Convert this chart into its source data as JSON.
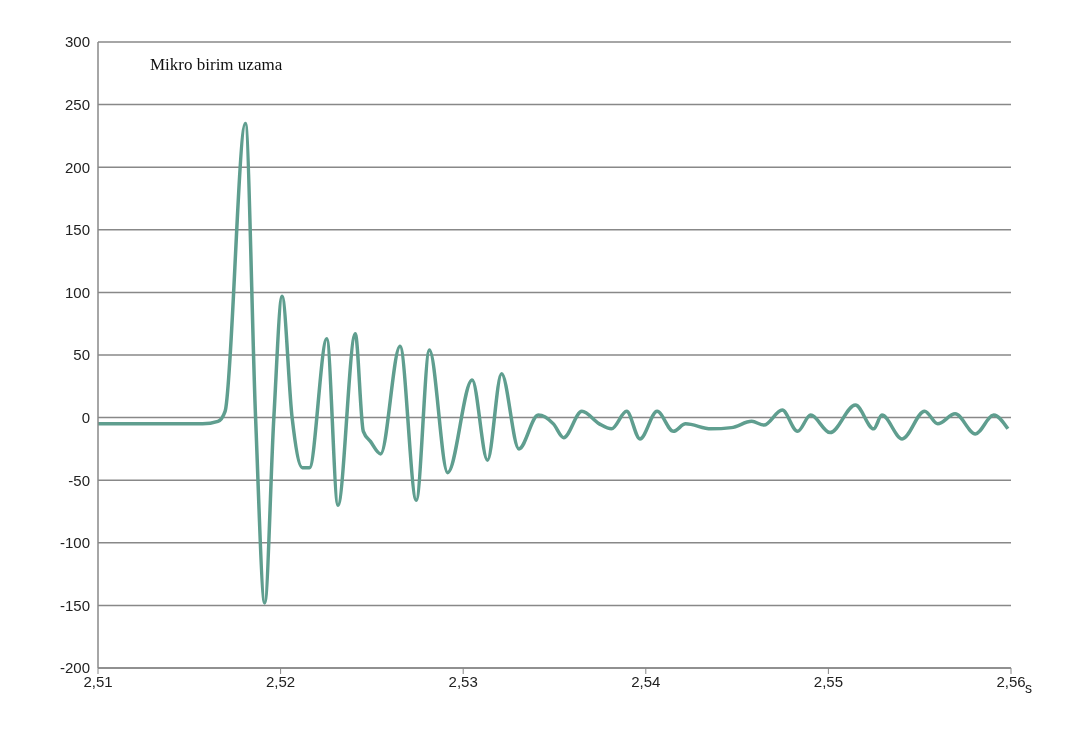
{
  "chart_data": {
    "type": "line",
    "ylabel": "Mikro  birim uzama",
    "xlabel": "s",
    "xlim": [
      2.51,
      2.56
    ],
    "xticks": [
      {
        "value": 2.51,
        "label": "2,51"
      },
      {
        "value": 2.52,
        "label": "2,52"
      },
      {
        "value": 2.53,
        "label": "2,53"
      },
      {
        "value": 2.54,
        "label": "2,54"
      },
      {
        "value": 2.55,
        "label": "2,55"
      },
      {
        "value": 2.56,
        "label": "2,56"
      }
    ],
    "ylim": [
      -200,
      300
    ],
    "yticks": [
      -200,
      -150,
      -100,
      -50,
      0,
      50,
      100,
      150,
      200,
      250,
      300
    ],
    "grid": "y",
    "marker": "none",
    "line_style": "solid",
    "series": [
      {
        "color": "#5f9e8f",
        "x": [
          2.51,
          2.51239,
          2.51406,
          2.51573,
          2.51657,
          2.51696,
          2.51807,
          2.51863,
          2.51913,
          2.51963,
          2.52008,
          2.52063,
          2.52119,
          2.52158,
          2.52253,
          2.52314,
          2.52409,
          2.52453,
          2.52492,
          2.52548,
          2.52654,
          2.52743,
          2.52815,
          2.52915,
          2.53049,
          2.53133,
          2.5321,
          2.53305,
          2.53411,
          2.53494,
          2.5355,
          2.5365,
          2.53745,
          2.53812,
          2.53895,
          2.53968,
          2.54062,
          2.54151,
          2.54218,
          2.54357,
          2.54469,
          2.5458,
          2.54647,
          2.54747,
          2.54831,
          2.54903,
          2.55009,
          2.55148,
          2.55248,
          2.55293,
          2.55404,
          2.55527,
          2.55599,
          2.55694,
          2.55805,
          2.55905,
          2.55983
        ],
        "values": [
          -5,
          -5,
          -5,
          -5,
          -3,
          5,
          235,
          0,
          -148,
          0,
          97,
          0,
          -40,
          -40,
          63,
          -70,
          67,
          -11,
          -19,
          -29,
          57,
          -66,
          54,
          -44,
          30,
          -34,
          35,
          -25,
          2,
          -5,
          -16,
          5,
          -5,
          -9,
          5,
          -17,
          5,
          -11,
          -5,
          -9,
          -8,
          -3,
          -6,
          6,
          -11,
          2,
          -12,
          10,
          -9,
          2,
          -17,
          5,
          -5,
          3,
          -13,
          2,
          -9
        ]
      }
    ]
  }
}
